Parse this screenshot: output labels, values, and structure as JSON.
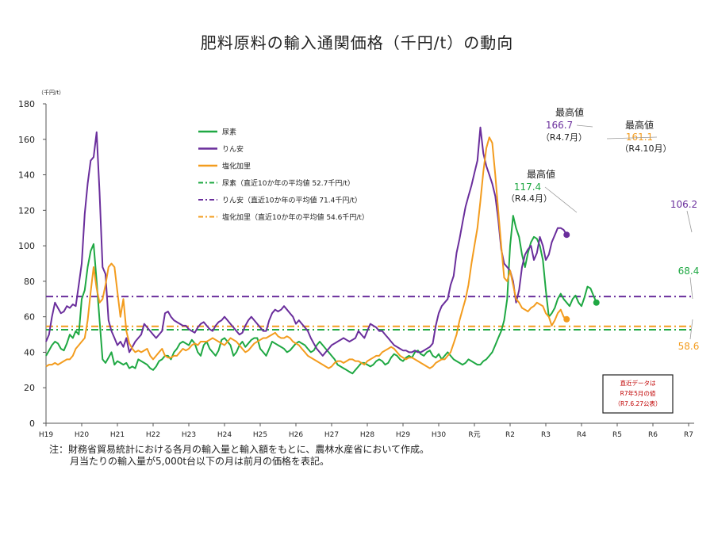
{
  "chart_data": {
    "type": "line",
    "title": "肥料原料の輸入通関価格（千円/t）の動向",
    "y_unit": "（千円/t）",
    "ylim": [
      0,
      180
    ],
    "yticks": [
      "0",
      "20",
      "40",
      "60",
      "80",
      "100",
      "120",
      "140",
      "160",
      "180"
    ],
    "xticks": [
      "H19",
      "H20",
      "H21",
      "H22",
      "H23",
      "H24",
      "H25",
      "H26",
      "H27",
      "H28",
      "H29",
      "H30",
      "R元",
      "R2",
      "R3",
      "R4",
      "R5",
      "R6",
      "R7"
    ],
    "x_range": "H19.1 – R7.5 (monthly)",
    "grid": false,
    "legend_position": "upper-left inside plot",
    "series": [
      {
        "name": "尿素",
        "color": "#1fa843",
        "values": [
          38,
          41,
          44,
          46,
          45,
          42,
          41,
          45,
          50,
          48,
          52,
          50,
          70,
          75,
          88,
          97,
          101,
          80,
          58,
          36,
          34,
          37,
          40,
          33,
          35,
          34,
          33,
          34,
          31,
          32,
          31,
          36,
          35,
          34,
          33,
          31,
          30,
          32,
          35,
          36,
          38,
          38,
          36,
          40,
          42,
          45,
          46,
          45,
          44,
          47,
          45,
          40,
          38,
          44,
          46,
          42,
          40,
          38,
          41,
          47,
          48,
          46,
          44,
          38,
          40,
          44,
          46,
          43,
          45,
          47,
          48,
          48,
          42,
          40,
          38,
          42,
          46,
          45,
          44,
          43,
          42,
          40,
          41,
          43,
          45,
          46,
          45,
          44,
          42,
          40,
          41,
          44,
          46,
          44,
          42,
          40,
          38,
          36,
          33,
          32,
          31,
          30,
          29,
          28,
          30,
          32,
          34,
          34,
          33,
          32,
          33,
          35,
          36,
          35,
          33,
          34,
          37,
          39,
          38,
          36,
          35,
          37,
          38,
          37,
          40,
          41,
          39,
          38,
          40,
          41,
          38,
          37,
          39,
          36,
          38,
          40,
          38,
          36,
          35,
          34,
          33,
          34,
          36,
          35,
          34,
          33,
          33,
          35,
          36,
          38,
          40,
          44,
          48,
          52,
          58,
          70,
          100,
          117,
          110,
          105,
          95,
          88,
          96,
          102,
          105,
          104,
          100,
          92,
          75,
          60,
          62,
          65,
          70,
          73,
          70,
          68,
          66,
          70,
          72,
          68,
          66,
          71,
          77,
          76,
          72,
          68
        ]
      },
      {
        "name": "りん安",
        "color": "#6a2e9c",
        "values": [
          46,
          50,
          60,
          68,
          65,
          62,
          63,
          66,
          65,
          67,
          66,
          78,
          90,
          118,
          135,
          148,
          150,
          164,
          130,
          88,
          84,
          58,
          52,
          48,
          44,
          46,
          43,
          48,
          40,
          43,
          46,
          48,
          50,
          56,
          54,
          52,
          50,
          48,
          50,
          52,
          62,
          63,
          60,
          58,
          57,
          56,
          55,
          55,
          53,
          52,
          51,
          54,
          56,
          57,
          55,
          53,
          52,
          55,
          57,
          58,
          60,
          58,
          56,
          54,
          52,
          50,
          51,
          55,
          58,
          60,
          58,
          56,
          54,
          52,
          52,
          58,
          62,
          64,
          63,
          64,
          66,
          64,
          62,
          60,
          56,
          58,
          56,
          54,
          52,
          48,
          45,
          42,
          40,
          38,
          40,
          42,
          44,
          45,
          46,
          47,
          48,
          47,
          46,
          47,
          48,
          52,
          50,
          48,
          52,
          56,
          55,
          54,
          52,
          52,
          50,
          48,
          46,
          44,
          43,
          42,
          41,
          41,
          40,
          40,
          41,
          40,
          40,
          41,
          42,
          43,
          45,
          55,
          62,
          66,
          68,
          70,
          78,
          83,
          96,
          104,
          113,
          122,
          128,
          134,
          141,
          148,
          166.7,
          152,
          145,
          140,
          135,
          128,
          115,
          98,
          90,
          88,
          86,
          80,
          68,
          75,
          88,
          95,
          98,
          100,
          92,
          96,
          105,
          100,
          92,
          95,
          102,
          106,
          110,
          110,
          109,
          106.2
        ]
      },
      {
        "name": "塩化加里",
        "color": "#f39c1e",
        "values": [
          32,
          33,
          33,
          34,
          33,
          34,
          35,
          36,
          36,
          38,
          42,
          44,
          46,
          48,
          58,
          74,
          88,
          76,
          68,
          70,
          78,
          88,
          90,
          88,
          74,
          60,
          70,
          52,
          45,
          42,
          40,
          41,
          40,
          41,
          42,
          38,
          36,
          38,
          40,
          42,
          38,
          37,
          37,
          38,
          38,
          40,
          42,
          41,
          42,
          44,
          45,
          44,
          46,
          46,
          46,
          47,
          48,
          47,
          46,
          45,
          44,
          46,
          48,
          47,
          46,
          44,
          42,
          40,
          41,
          43,
          45,
          46,
          47,
          48,
          48,
          49,
          50,
          51,
          49,
          48,
          48,
          49,
          48,
          46,
          45,
          44,
          42,
          40,
          38,
          37,
          36,
          35,
          34,
          33,
          32,
          31,
          32,
          34,
          35,
          35,
          34,
          35,
          36,
          36,
          35,
          35,
          34,
          33,
          35,
          36,
          37,
          38,
          38,
          40,
          41,
          42,
          43,
          42,
          40,
          38,
          37,
          36,
          37,
          37,
          36,
          35,
          34,
          33,
          32,
          31,
          32,
          34,
          35,
          36,
          36,
          38,
          40,
          45,
          50,
          58,
          64,
          70,
          78,
          90,
          100,
          110,
          125,
          142,
          155,
          161.1,
          158,
          140,
          120,
          100,
          82,
          80,
          86,
          78,
          70,
          68,
          65,
          64,
          63,
          65,
          66,
          68,
          67,
          66,
          62,
          60,
          55,
          58,
          62,
          64,
          60,
          58.6
        ]
      }
    ],
    "reference_lines": [
      {
        "name": "尿素（直近10か年の平均値 52.7千円/t）",
        "value": 52.7,
        "color": "#1fa843"
      },
      {
        "name": "りん安（直近10か年の平均値 71.4千円/t）",
        "value": 71.4,
        "color": "#6a2e9c"
      },
      {
        "name": "塩化加里（直近10か年の平均値 54.6千円/t）",
        "value": 54.6,
        "color": "#f39c1e"
      }
    ],
    "annotations": [
      {
        "label": "最高値",
        "value": "117.4",
        "date": "（R4.4月）",
        "series": "尿素"
      },
      {
        "label": "最高値",
        "value": "166.7",
        "date": "（R4.7月）",
        "series": "りん安"
      },
      {
        "label": "最高値",
        "value": "161.1",
        "date": "（R4.10月）",
        "series": "塩化加里"
      }
    ],
    "latest_values": [
      {
        "series": "りん安",
        "value": "106.2"
      },
      {
        "series": "尿素",
        "value": "68.4"
      },
      {
        "series": "塩化加里",
        "value": "58.6"
      }
    ],
    "notice_box": [
      "直近データは",
      "R7年5月の値",
      "（R7.6.27公表）"
    ]
  },
  "notes": {
    "line1": "注：財務省貿易統計における各月の輸入量と輸入額をもとに、農林水産省において作成。",
    "line2": "月当たりの輸入量が5,000t台以下の月は前月の価格を表記。"
  }
}
